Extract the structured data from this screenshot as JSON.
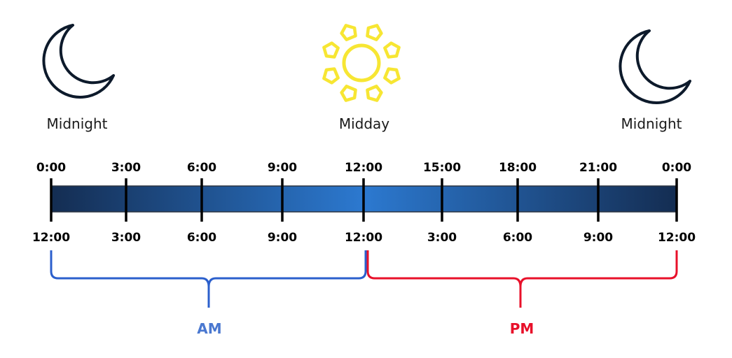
{
  "top_labels": {
    "left": "Midnight",
    "center": "Midday",
    "right": "Midnight"
  },
  "icons": {
    "left": "moon-icon",
    "center": "sun-icon",
    "right": "moon-icon"
  },
  "ticks_24h": [
    "0:00",
    "3:00",
    "6:00",
    "9:00",
    "12:00",
    "15:00",
    "18:00",
    "21:00",
    "0:00"
  ],
  "ticks_12h": [
    "12:00",
    "3:00",
    "6:00",
    "9:00",
    "12:00",
    "3:00",
    "6:00",
    "9:00",
    "12:00"
  ],
  "periods": {
    "am": "AM",
    "pm": "PM"
  },
  "colors": {
    "am": "#2b5fcc",
    "pm": "#e8102a",
    "sun": "#f7e633",
    "moon": "#0d1a2b",
    "bar_dark": "#142d52",
    "bar_light": "#2c79d0",
    "am_label": "#4a78d0"
  }
}
